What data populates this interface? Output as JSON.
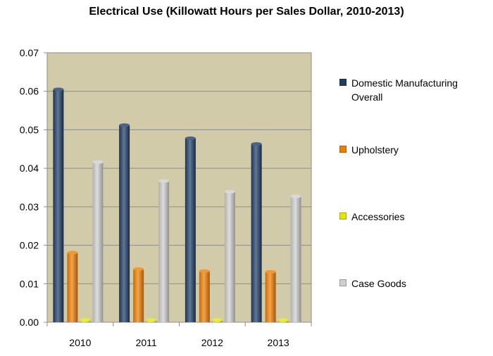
{
  "chart_data": {
    "type": "bar",
    "title": "Electrical Use (Killowatt Hours per Sales Dollar, 2010-2013)",
    "xlabel": "",
    "ylabel": "",
    "categories": [
      "2010",
      "2011",
      "2012",
      "2013"
    ],
    "series": [
      {
        "name": "Domestic Manufacturing Overall",
        "color": "#1f3c66",
        "values": [
          0.0605,
          0.0512,
          0.0478,
          0.0463
        ]
      },
      {
        "name": "Upholstery",
        "color": "#f07d00",
        "values": [
          0.0181,
          0.0138,
          0.0133,
          0.0131
        ]
      },
      {
        "name": "Accessories",
        "color": "#e6e600",
        "values": [
          0.0006,
          0.0006,
          0.0006,
          0.0006
        ]
      },
      {
        "name": "Case Goods",
        "color": "#cfcfcf",
        "values": [
          0.0416,
          0.0367,
          0.0339,
          0.0327
        ]
      }
    ],
    "ylim": [
      0,
      0.07
    ],
    "yticks": [
      "0.00",
      "0.01",
      "0.02",
      "0.03",
      "0.04",
      "0.05",
      "0.06",
      "0.07"
    ],
    "grid": true,
    "plot_background": "#d2cba9",
    "legend_position": "right"
  }
}
